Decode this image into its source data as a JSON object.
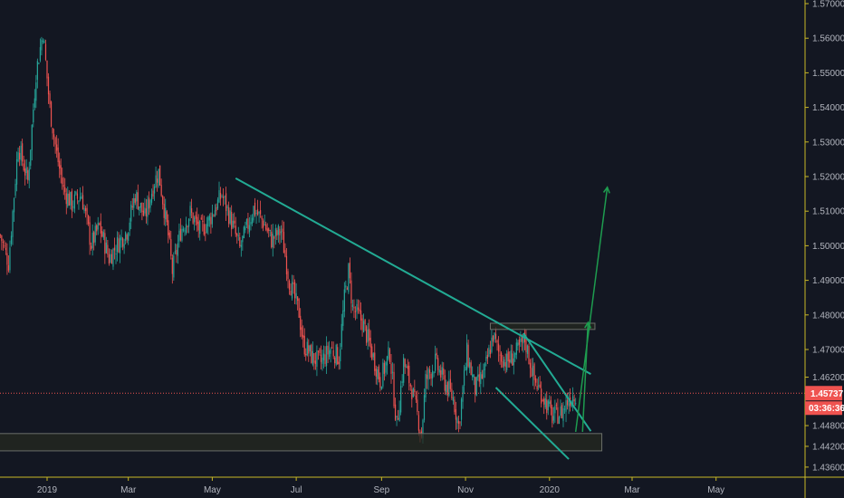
{
  "colors": {
    "background": "#131722",
    "up": "#26a69a",
    "down": "#ef5350",
    "axis": "#c9b826",
    "trendline": "#22ab94",
    "arrow": "#1e9c4f",
    "price_line": "#ef5350",
    "box_fill": "#252a20",
    "box_stroke": "#6b6f6a"
  },
  "chart_data": {
    "type": "candlestick",
    "title": "",
    "x_unit": "days since 2019-01-01",
    "xlabel": "",
    "ylabel": "",
    "ylim": [
      1.436,
      1.57
    ],
    "grid": false,
    "x_ticks": [
      {
        "label": "2019",
        "day": 0
      },
      {
        "label": "Mar",
        "day": 59
      },
      {
        "label": "May",
        "day": 120
      },
      {
        "label": "Jul",
        "day": 181
      },
      {
        "label": "Sep",
        "day": 243
      },
      {
        "label": "Nov",
        "day": 304
      },
      {
        "label": "2020",
        "day": 365
      },
      {
        "label": "Mar",
        "day": 425
      },
      {
        "label": "May",
        "day": 486
      }
    ],
    "y_ticks": [
      {
        "label": "1.57000",
        "value": 1.57
      },
      {
        "label": "1.56000",
        "value": 1.56
      },
      {
        "label": "1.55000",
        "value": 1.55
      },
      {
        "label": "1.54000",
        "value": 1.54
      },
      {
        "label": "1.53000",
        "value": 1.53
      },
      {
        "label": "1.52000",
        "value": 1.52
      },
      {
        "label": "1.51000",
        "value": 1.51
      },
      {
        "label": "1.50000",
        "value": 1.5
      },
      {
        "label": "1.49000",
        "value": 1.49
      },
      {
        "label": "1.48000",
        "value": 1.48
      },
      {
        "label": "1.47000",
        "value": 1.47
      },
      {
        "label": "1.46200",
        "value": 1.462
      },
      {
        "label": "1.44800",
        "value": 1.448
      },
      {
        "label": "1.44200",
        "value": 1.442
      },
      {
        "label": "1.43600",
        "value": 1.436
      }
    ],
    "current_price": {
      "value": 1.45737,
      "label": "1.45737",
      "countdown": "03:36:36"
    },
    "price_path": [
      [
        -34,
        1.503
      ],
      [
        -28,
        1.4951
      ],
      [
        -21,
        1.5292
      ],
      [
        -14,
        1.5187
      ],
      [
        -8,
        1.5501
      ],
      [
        -3,
        1.5619
      ],
      [
        2,
        1.5396
      ],
      [
        7,
        1.5265
      ],
      [
        12,
        1.5161
      ],
      [
        18,
        1.5121
      ],
      [
        25,
        1.5148
      ],
      [
        32,
        1.5004
      ],
      [
        38,
        1.5056
      ],
      [
        45,
        1.4964
      ],
      [
        51,
        1.5004
      ],
      [
        58,
        1.5043
      ],
      [
        64,
        1.5148
      ],
      [
        71,
        1.5082
      ],
      [
        78,
        1.5187
      ],
      [
        81,
        1.5213
      ],
      [
        88,
        1.503
      ],
      [
        91,
        1.4925
      ],
      [
        97,
        1.5043
      ],
      [
        104,
        1.5095
      ],
      [
        111,
        1.5043
      ],
      [
        117,
        1.5069
      ],
      [
        127,
        1.5148
      ],
      [
        134,
        1.5069
      ],
      [
        140,
        1.4991
      ],
      [
        150,
        1.5108
      ],
      [
        157,
        1.5069
      ],
      [
        163,
        1.5017
      ],
      [
        170,
        1.5043
      ],
      [
        176,
        1.4899
      ],
      [
        183,
        1.4807
      ],
      [
        186,
        1.4716
      ],
      [
        193,
        1.4676
      ],
      [
        199,
        1.4663
      ],
      [
        206,
        1.4703
      ],
      [
        212,
        1.4676
      ],
      [
        216,
        1.4847
      ],
      [
        219,
        1.4925
      ],
      [
        222,
        1.482
      ],
      [
        229,
        1.4781
      ],
      [
        236,
        1.469
      ],
      [
        242,
        1.4611
      ],
      [
        249,
        1.469
      ],
      [
        254,
        1.448
      ],
      [
        259,
        1.4663
      ],
      [
        265,
        1.4585
      ],
      [
        272,
        1.4454
      ],
      [
        275,
        1.4611
      ],
      [
        282,
        1.4663
      ],
      [
        288,
        1.4611
      ],
      [
        295,
        1.4559
      ],
      [
        299,
        1.448
      ],
      [
        305,
        1.469
      ],
      [
        311,
        1.4585
      ],
      [
        318,
        1.4637
      ],
      [
        324,
        1.4742
      ],
      [
        328,
        1.469
      ],
      [
        334,
        1.4663
      ],
      [
        341,
        1.469
      ],
      [
        347,
        1.4729
      ],
      [
        354,
        1.4611
      ],
      [
        361,
        1.4559
      ],
      [
        367,
        1.4506
      ],
      [
        374,
        1.4519
      ],
      [
        379,
        1.4559
      ],
      [
        384,
        1.4574
      ]
    ],
    "drawings": {
      "trendlines": [
        {
          "name": "descending-resistance-line",
          "from": [
            137,
            1.5195
          ],
          "to": [
            395,
            1.4629
          ]
        },
        {
          "name": "wedge-lower-line",
          "from": [
            326,
            1.459
          ],
          "to": [
            379,
            1.4383
          ]
        },
        {
          "name": "wedge-upper-line",
          "from": [
            346,
            1.4747
          ],
          "to": [
            395,
            1.4464
          ]
        }
      ],
      "boxes": [
        {
          "name": "resistance-zone",
          "from": [
            322,
            1.4776
          ],
          "to": [
            398,
            1.4758
          ]
        },
        {
          "name": "support-zone",
          "from": [
            -40,
            1.4457
          ],
          "to": [
            403,
            1.4407
          ]
        }
      ],
      "arrows": [
        {
          "name": "projection-arrow-long",
          "from": [
            384,
            1.4462
          ],
          "to": [
            407,
            1.5169
          ]
        },
        {
          "name": "projection-arrow-short",
          "from": [
            389,
            1.4462
          ],
          "to": [
            393,
            1.4778
          ]
        }
      ]
    }
  }
}
